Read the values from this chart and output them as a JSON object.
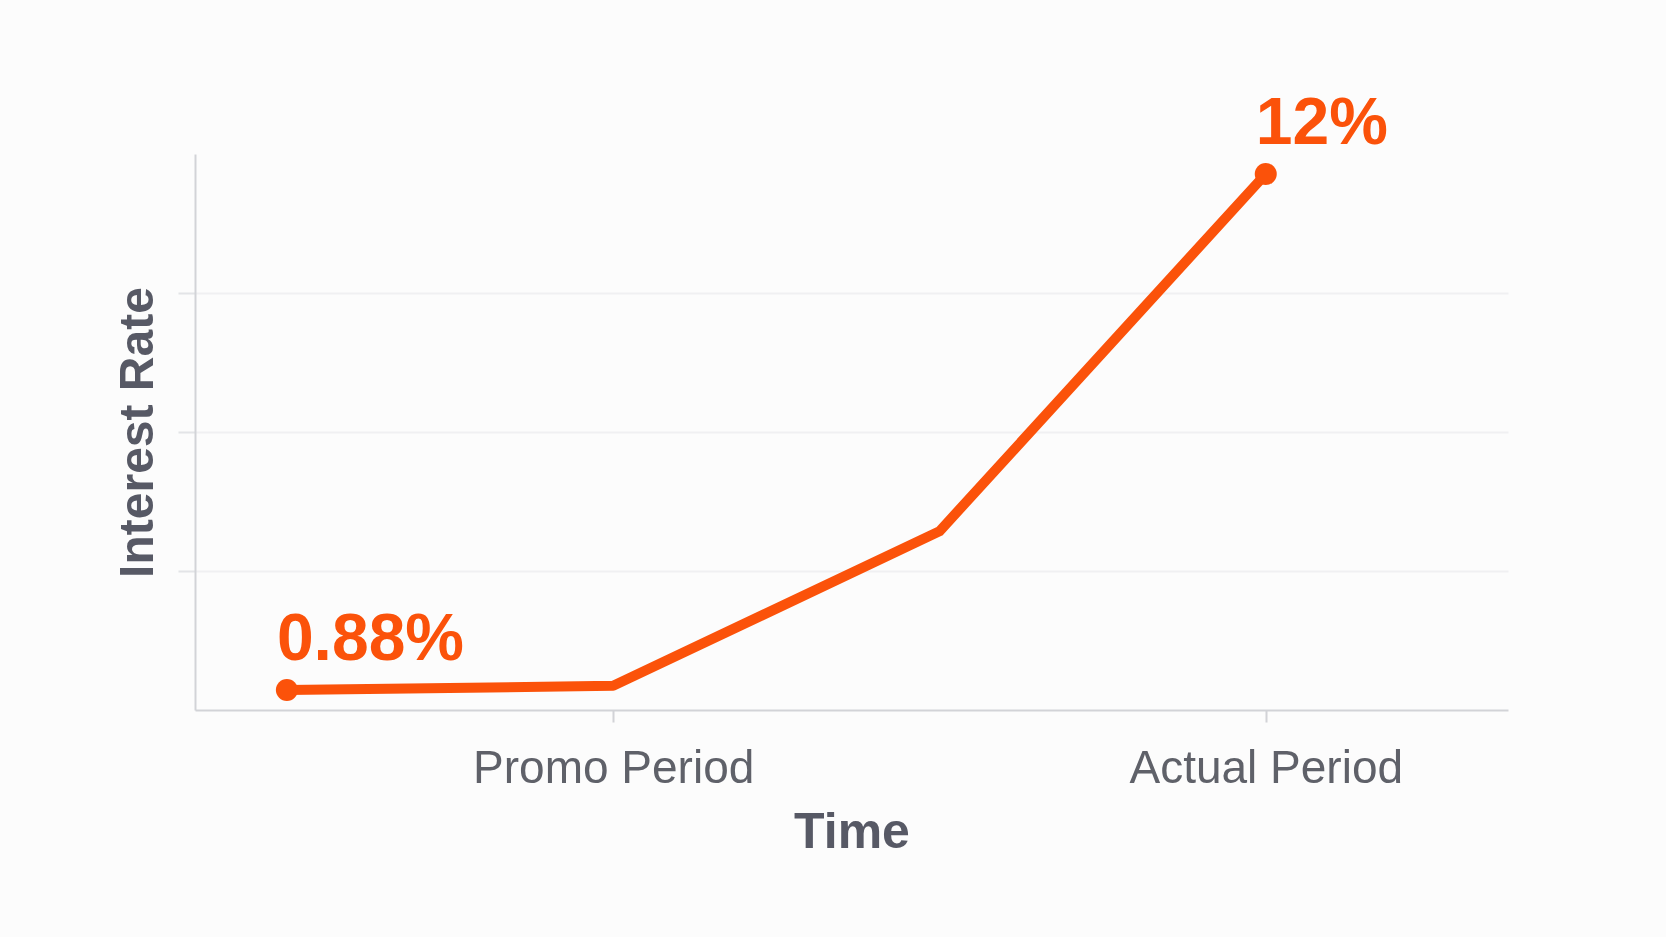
{
  "chart_data": {
    "type": "line",
    "xlabel": "Time",
    "ylabel": "Interest Rate",
    "categories": [
      null,
      "Promo Period",
      null,
      "Actual Period"
    ],
    "series": [
      {
        "color": "#fb520a",
        "values": [
          0.88,
          0.97,
          4.3,
          12
        ],
        "value_labels": [
          "0.88%",
          null,
          null,
          "12%"
        ]
      }
    ],
    "tick_labels": "x",
    "grid": "y",
    "marker": "circle",
    "line_style": "solid"
  }
}
